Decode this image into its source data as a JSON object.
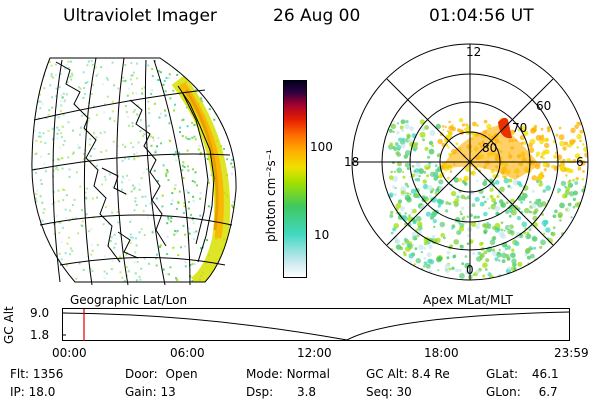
{
  "header": {
    "title": "Ultraviolet Imager",
    "date": "26 Aug 00",
    "time": "01:04:56 UT"
  },
  "colorbar": {
    "unit": "photon cm⁻²s⁻¹",
    "tick_high": "100",
    "tick_low": "10"
  },
  "geo_panel": {
    "label": "Geographic Lat/Lon"
  },
  "polar_panel": {
    "label": "Apex MLat/MLT",
    "mlt_labels": [
      "12",
      "18",
      "6",
      "0"
    ],
    "lat_labels": [
      "60",
      "70",
      "80"
    ]
  },
  "altitude_plot": {
    "ylabel": "GC Alt",
    "yticks": [
      "9.0",
      "1.8"
    ],
    "xticks": [
      "00:00",
      "06:00",
      "12:00",
      "18:00",
      "23:59"
    ],
    "cursor_time": "01:04:56"
  },
  "status": {
    "flt": {
      "label": "Flt:",
      "value": "1356"
    },
    "ip": {
      "label": "IP:",
      "value": "18.0"
    },
    "door": {
      "label": "Door:",
      "value": "Open"
    },
    "gain": {
      "label": "Gain:",
      "value": "13"
    },
    "mode": {
      "label": "Mode:",
      "value": "Normal"
    },
    "dsp": {
      "label": "Dsp:",
      "value": "3.8"
    },
    "gcalt": {
      "label": "GC Alt:",
      "value": "8.4 Re"
    },
    "seq": {
      "label": "Seq:",
      "value": "30"
    },
    "glat": {
      "label": "GLat:",
      "value": "46.1"
    },
    "glon": {
      "label": "GLon:",
      "value": "6.7"
    }
  }
}
